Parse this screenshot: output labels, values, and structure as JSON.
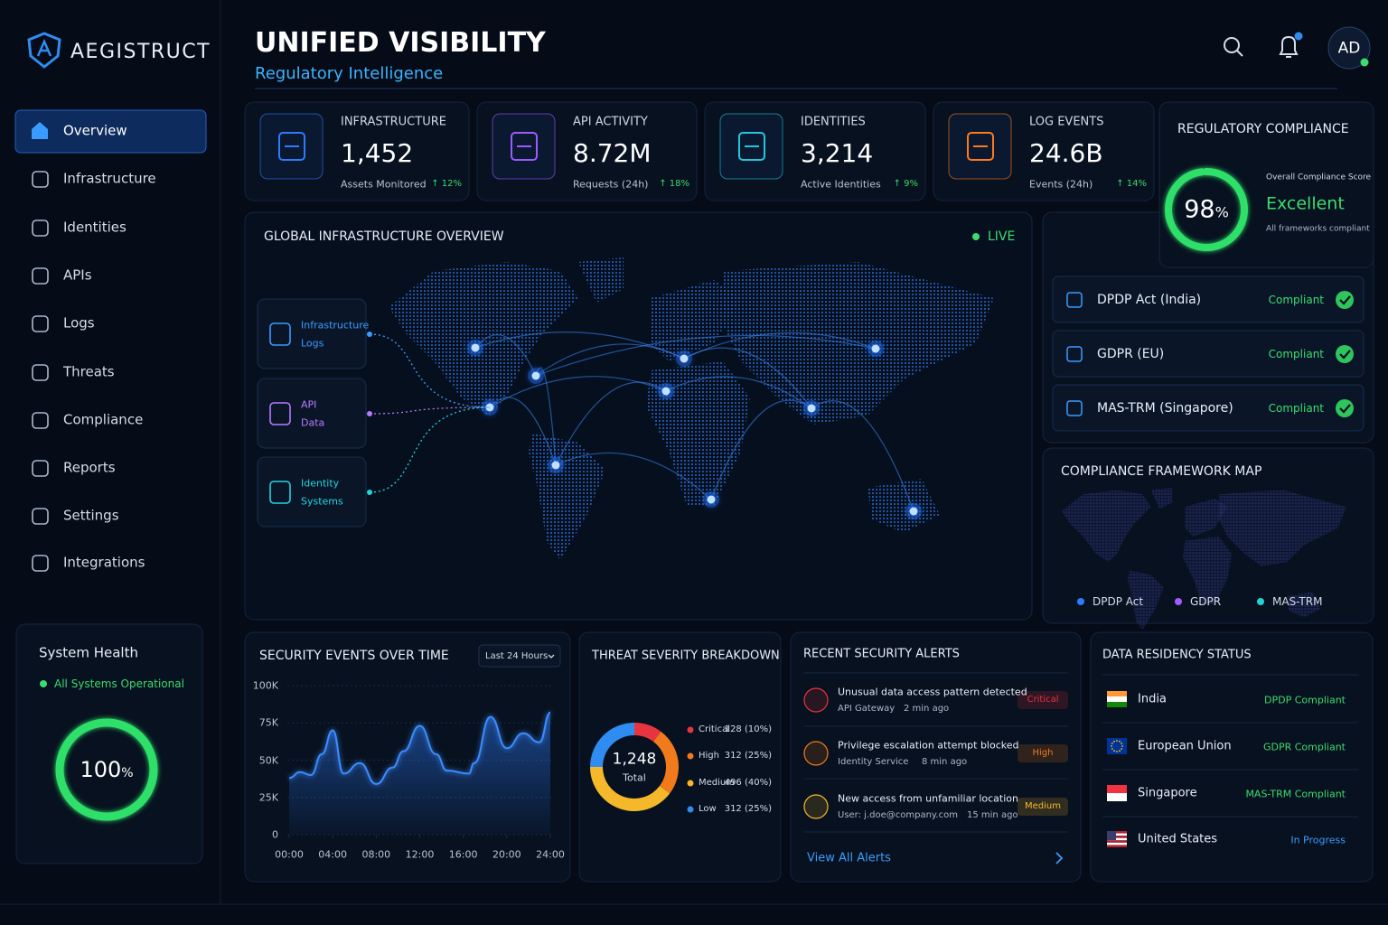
{
  "brand": "AEGISTRUCT",
  "header": {
    "title": "UNIFIED VISIBILITY",
    "subtitle": "Regulatory Intelligence",
    "avatar": "AD"
  },
  "nav": [
    "Overview",
    "Infrastructure",
    "Identities",
    "APIs",
    "Logs",
    "Threats",
    "Compliance",
    "Reports",
    "Settings",
    "Integrations"
  ],
  "system_health": {
    "title": "System Health",
    "status": "All Systems Operational",
    "value": 100,
    "unit": "%"
  },
  "kpis": [
    {
      "label": "INFRASTRUCTURE",
      "value": "1,452",
      "caption": "Assets Monitored",
      "change": "↑ 12%",
      "color": "#2f7bff"
    },
    {
      "label": "API ACTIVITY",
      "value": "8.72M",
      "caption": "Requests (24h)",
      "change": "↑ 18%",
      "color": "#9b5cff"
    },
    {
      "label": "IDENTITIES",
      "value": "3,214",
      "caption": "Active Identities",
      "change": "↑ 9%",
      "color": "#22c7e0"
    },
    {
      "label": "LOG EVENTS",
      "value": "24.6B",
      "caption": "Events (24h)",
      "change": "↑ 14%",
      "color": "#ff7a1a"
    }
  ],
  "infrastructure_map": {
    "title": "GLOBAL INFRASTRUCTURE OVERVIEW",
    "status": "LIVE",
    "sources": [
      {
        "lines": [
          "Infrastructure",
          "Logs"
        ]
      },
      {
        "lines": [
          "API",
          "Data"
        ]
      },
      {
        "lines": [
          "Identity",
          "Systems"
        ]
      }
    ]
  },
  "compliance": {
    "title": "REGULATORY COMPLIANCE",
    "score": 98,
    "unit": "%",
    "score_label": "Overall Compliance Score",
    "rating": "Excellent",
    "note": "All frameworks compliant",
    "frameworks": [
      {
        "name": "DPDP Act (India)",
        "status": "Compliant"
      },
      {
        "name": "GDPR (EU)",
        "status": "Compliant"
      },
      {
        "name": "MAS-TRM (Singapore)",
        "status": "Compliant"
      }
    ]
  },
  "framework_map": {
    "title": "COMPLIANCE FRAMEWORK MAP",
    "legend": [
      {
        "name": "DPDP Act",
        "color": "#2f7bff"
      },
      {
        "name": "GDPR",
        "color": "#a35cff"
      },
      {
        "name": "MAS-TRM",
        "color": "#22d3d3"
      }
    ]
  },
  "security_events": {
    "type": "line",
    "title": "SECURITY EVENTS OVER TIME",
    "range": "Last 24 Hours",
    "color": "#3b8cff",
    "x": [
      0,
      1,
      2,
      3,
      4,
      5,
      6.5,
      8,
      9.5,
      10.5,
      12,
      13.5,
      14.5,
      16.5,
      17,
      18.5,
      20,
      21.5,
      23,
      24
    ],
    "values": [
      38000,
      42000,
      40000,
      54000,
      70000,
      41000,
      48000,
      34000,
      45000,
      56000,
      73000,
      54000,
      43000,
      41000,
      48000,
      79000,
      58000,
      68000,
      62000,
      82000
    ],
    "xlim": [
      0,
      24
    ],
    "xticks": [
      {
        "value": 0,
        "label": "00:00"
      },
      {
        "value": 4,
        "label": "04:00"
      },
      {
        "value": 8,
        "label": "08:00"
      },
      {
        "value": 12,
        "label": "12:00"
      },
      {
        "value": 16,
        "label": "16:00"
      },
      {
        "value": 20,
        "label": "20:00"
      },
      {
        "value": 24,
        "label": "24:00"
      }
    ],
    "ylim": [
      0,
      100000
    ],
    "yticks": [
      0,
      {
        "value": 25000,
        "label": "25K"
      },
      {
        "value": 50000,
        "label": "50K"
      },
      {
        "value": 75000,
        "label": "75K"
      },
      {
        "value": 100000,
        "label": "100K"
      }
    ],
    "grid": true
  },
  "threat_severity": {
    "type": "donut",
    "title": "THREAT SEVERITY BREAKDOWN",
    "total": "1,248",
    "total_label": "Total",
    "categories": [
      "Critical",
      "High",
      "Medium",
      "Low"
    ],
    "values": [
      128,
      312,
      496,
      312
    ],
    "value_labels": [
      "128 (10%)",
      "312 (25%)",
      "496 (40%)",
      "312 (25%)"
    ],
    "colors": [
      "#e8343f",
      "#f07a1c",
      "#f5b82a",
      "#2f8cf0"
    ]
  },
  "alerts": {
    "title": "RECENT SECURITY ALERTS",
    "link": "View All Alerts",
    "items": [
      {
        "title": "Unusual data access pattern detected",
        "source": "API Gateway",
        "time": "2 min ago",
        "severity": "Critical",
        "color": "#e8343f"
      },
      {
        "title": "Privilege escalation attempt blocked",
        "source": "Identity Service",
        "time": "8 min ago",
        "severity": "High",
        "color": "#f07a1c"
      },
      {
        "title": "New access from unfamiliar location",
        "source": "User: j.doe@company.com",
        "time": "15 min ago",
        "severity": "Medium",
        "color": "#f5b82a"
      }
    ]
  },
  "data_residency": {
    "title": "DATA RESIDENCY STATUS",
    "rows": [
      {
        "country": "India",
        "status": "DPDP Compliant",
        "color": "#3ddc6f"
      },
      {
        "country": "European Union",
        "status": "GDPR Compliant",
        "color": "#3ddc6f"
      },
      {
        "country": "Singapore",
        "status": "MAS-TRM Compliant",
        "color": "#3ddc6f"
      },
      {
        "country": "United States",
        "status": "In Progress",
        "color": "#3b9cff"
      }
    ]
  }
}
